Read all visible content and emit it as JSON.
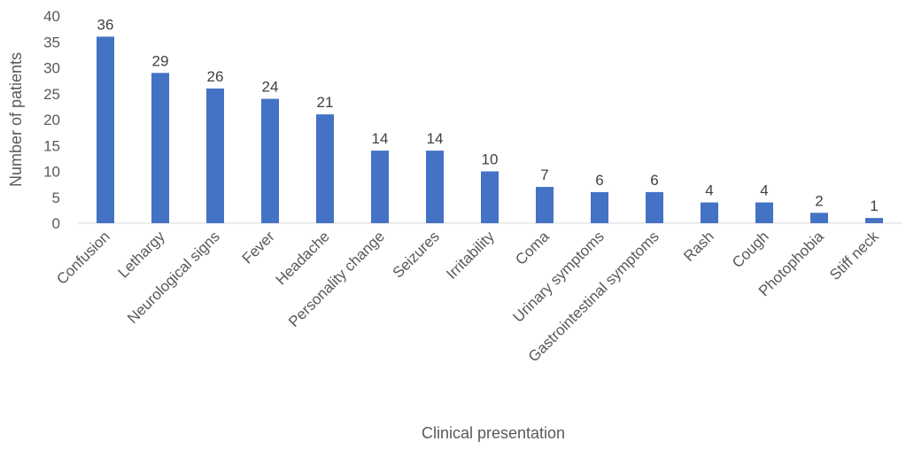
{
  "chart_data": {
    "type": "bar",
    "title": "",
    "xlabel": "Clinical presentation",
    "ylabel": "Number of patients",
    "ylim": [
      0,
      40
    ],
    "yticks": [
      0,
      5,
      10,
      15,
      20,
      25,
      30,
      35,
      40
    ],
    "grid": false,
    "legend": "none",
    "bar_color": "#4472C4",
    "categories": [
      "Confusion",
      "Lethargy",
      "Neurological signs",
      "Fever",
      "Headache",
      "Personality change",
      "Seizures",
      "Irritability",
      "Coma",
      "Urinary symptoms",
      "Gastrointestinal symptoms",
      "Rash",
      "Cough",
      "Photophobia",
      "Stiff neck"
    ],
    "values": [
      36,
      29,
      26,
      24,
      21,
      14,
      14,
      10,
      7,
      6,
      6,
      4,
      4,
      2,
      1
    ]
  }
}
